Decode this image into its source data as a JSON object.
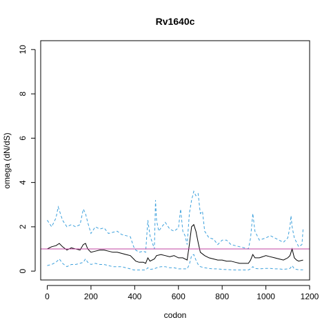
{
  "chart_data": {
    "type": "line",
    "title": "Rv1640c",
    "xlabel": "codon",
    "ylabel": "omega (dN/dS)",
    "xlim": [
      -30,
      1200
    ],
    "ylim": [
      -0.4,
      10.4
    ],
    "xticks": [
      0,
      200,
      400,
      600,
      800,
      1000,
      1200
    ],
    "yticks": [
      0,
      2,
      4,
      6,
      8,
      10
    ],
    "grid": false,
    "reference_line": {
      "y": 1,
      "color": "#c040a0"
    },
    "colors": {
      "estimate": "#000000",
      "bounds": "#3ca0dc"
    },
    "series": [
      {
        "style": "solid",
        "x": [
          0,
          20,
          40,
          55,
          70,
          90,
          110,
          130,
          150,
          165,
          175,
          185,
          200,
          220,
          240,
          260,
          280,
          300,
          320,
          340,
          360,
          380,
          395,
          405,
          420,
          440,
          450,
          460,
          470,
          490,
          500,
          520,
          540,
          560,
          580,
          600,
          620,
          640,
          650,
          660,
          670,
          680,
          690,
          700,
          720,
          740,
          760,
          780,
          800,
          820,
          840,
          860,
          880,
          900,
          920,
          930,
          940,
          950,
          970,
          1000,
          1020,
          1040,
          1060,
          1080,
          1100,
          1110,
          1120,
          1130,
          1140,
          1150,
          1170
        ],
        "y": [
          1.0,
          1.1,
          1.15,
          1.25,
          1.1,
          0.95,
          1.05,
          1.0,
          0.95,
          1.2,
          1.25,
          1.0,
          0.85,
          0.9,
          0.95,
          0.95,
          0.9,
          0.85,
          0.85,
          0.8,
          0.75,
          0.7,
          0.55,
          0.45,
          0.4,
          0.4,
          0.35,
          0.6,
          0.45,
          0.55,
          0.7,
          0.75,
          0.7,
          0.65,
          0.7,
          0.6,
          0.6,
          0.5,
          1.2,
          2.0,
          2.1,
          1.8,
          1.3,
          0.85,
          0.7,
          0.6,
          0.55,
          0.5,
          0.5,
          0.45,
          0.45,
          0.4,
          0.35,
          0.35,
          0.35,
          0.5,
          0.75,
          0.6,
          0.6,
          0.7,
          0.65,
          0.6,
          0.55,
          0.5,
          0.6,
          0.7,
          1.0,
          0.6,
          0.5,
          0.45,
          0.5
        ]
      },
      {
        "style": "dashed",
        "x": [
          0,
          20,
          40,
          50,
          60,
          70,
          90,
          110,
          130,
          150,
          165,
          175,
          185,
          200,
          220,
          240,
          260,
          280,
          300,
          320,
          340,
          360,
          380,
          395,
          405,
          420,
          440,
          450,
          460,
          470,
          490,
          495,
          500,
          510,
          520,
          540,
          560,
          580,
          600,
          610,
          620,
          630,
          640,
          650,
          660,
          670,
          680,
          690,
          700,
          710,
          720,
          740,
          760,
          780,
          800,
          820,
          840,
          860,
          880,
          900,
          920,
          930,
          940,
          950,
          970,
          1000,
          1020,
          1040,
          1060,
          1080,
          1100,
          1110,
          1115,
          1120,
          1130,
          1140,
          1150,
          1165,
          1170
        ],
        "y": [
          2.3,
          2.0,
          2.4,
          2.9,
          2.6,
          2.3,
          2.0,
          2.1,
          2.0,
          2.1,
          2.8,
          2.6,
          2.2,
          1.7,
          2.0,
          1.9,
          1.95,
          1.7,
          1.75,
          1.8,
          1.65,
          1.6,
          1.55,
          1.1,
          0.95,
          0.85,
          0.9,
          0.85,
          2.3,
          1.6,
          1.0,
          3.2,
          2.3,
          1.8,
          1.95,
          2.2,
          1.9,
          1.8,
          1.95,
          2.8,
          1.8,
          1.6,
          1.2,
          2.6,
          3.2,
          3.6,
          3.4,
          3.5,
          2.6,
          2.7,
          1.8,
          1.5,
          1.45,
          1.2,
          1.4,
          1.4,
          1.2,
          1.15,
          1.1,
          1.05,
          1.0,
          1.5,
          2.6,
          1.8,
          1.4,
          1.5,
          1.6,
          1.5,
          1.4,
          1.3,
          1.5,
          2.0,
          2.5,
          2.0,
          1.5,
          1.3,
          1.1,
          1.2,
          1.9
        ]
      },
      {
        "style": "dashed",
        "x": [
          0,
          20,
          40,
          55,
          70,
          90,
          110,
          130,
          150,
          165,
          175,
          185,
          200,
          220,
          240,
          260,
          280,
          300,
          320,
          340,
          360,
          380,
          395,
          405,
          420,
          440,
          450,
          460,
          470,
          490,
          500,
          520,
          540,
          560,
          580,
          600,
          620,
          640,
          650,
          660,
          670,
          680,
          690,
          700,
          720,
          740,
          760,
          780,
          800,
          820,
          840,
          860,
          880,
          900,
          920,
          930,
          940,
          950,
          970,
          1000,
          1020,
          1040,
          1060,
          1080,
          1100,
          1110,
          1120,
          1130,
          1140,
          1150,
          1170
        ],
        "y": [
          0.25,
          0.3,
          0.4,
          0.55,
          0.35,
          0.2,
          0.3,
          0.3,
          0.35,
          0.4,
          0.55,
          0.4,
          0.3,
          0.35,
          0.3,
          0.3,
          0.25,
          0.2,
          0.2,
          0.2,
          0.15,
          0.1,
          0.05,
          0.05,
          0.05,
          0.05,
          0.05,
          0.15,
          0.08,
          0.1,
          0.15,
          0.2,
          0.2,
          0.15,
          0.15,
          0.1,
          0.1,
          0.1,
          0.3,
          0.7,
          0.75,
          0.5,
          0.3,
          0.2,
          0.15,
          0.12,
          0.1,
          0.1,
          0.08,
          0.07,
          0.06,
          0.05,
          0.05,
          0.05,
          0.05,
          0.1,
          0.2,
          0.12,
          0.1,
          0.12,
          0.12,
          0.1,
          0.1,
          0.08,
          0.1,
          0.12,
          0.25,
          0.1,
          0.08,
          0.06,
          0.06
        ]
      }
    ]
  }
}
